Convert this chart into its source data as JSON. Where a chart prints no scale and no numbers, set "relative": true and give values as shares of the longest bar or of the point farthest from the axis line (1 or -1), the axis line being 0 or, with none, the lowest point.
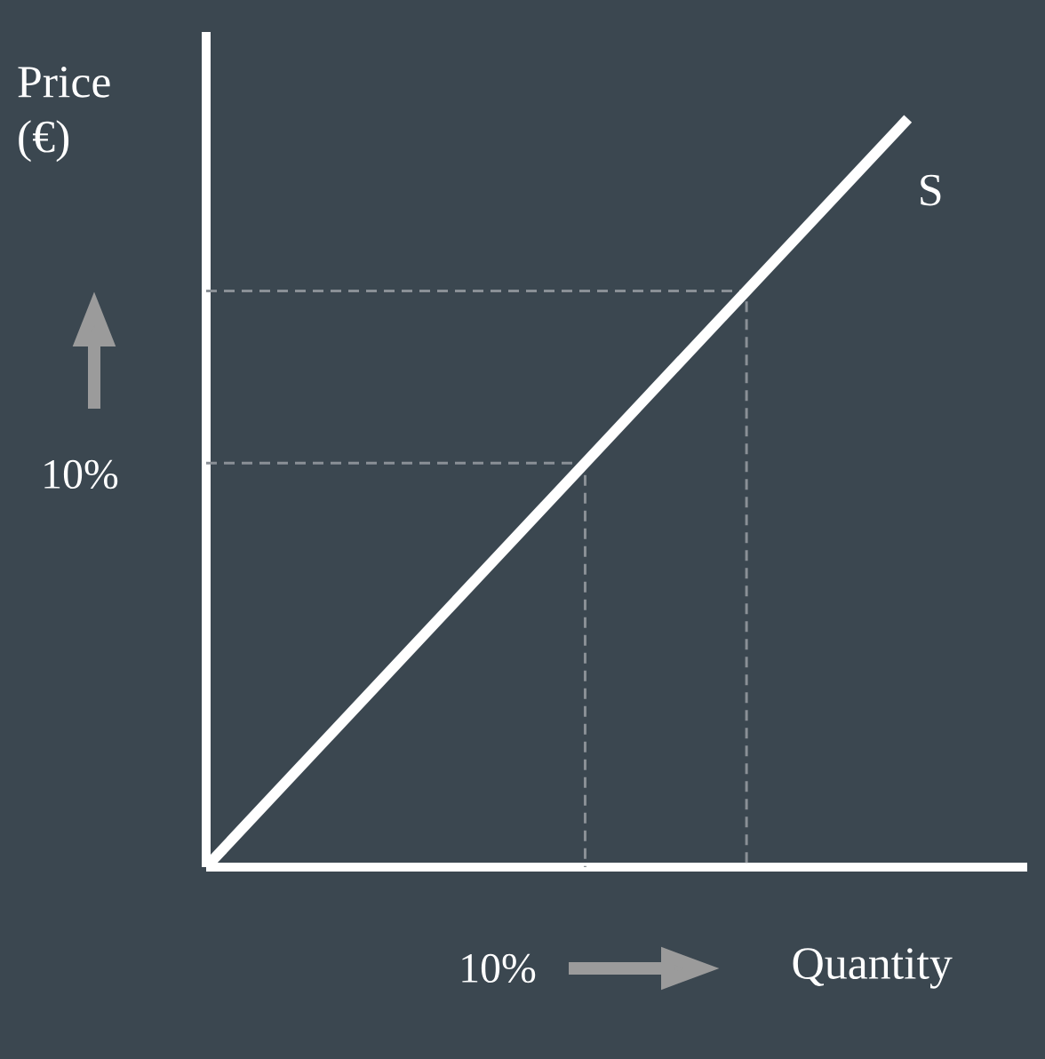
{
  "chart_data": {
    "type": "line",
    "relative": true,
    "xlabel": "Quantity",
    "ylabel": "Price (€)",
    "categories": [
      null,
      null
    ],
    "series": [
      {
        "name": "S",
        "color": "#ffffff",
        "values": [
          0,
          1
        ]
      }
    ],
    "ref_lines": [
      {
        "axis": "y",
        "value": 0,
        "color": "#ffffff",
        "line_style": "solid"
      },
      {
        "axis": "y",
        "value": 0.54,
        "color": "#8a9096",
        "line_style": "dashed"
      },
      {
        "axis": "y",
        "value": 0.77,
        "color": "#8a9096",
        "line_style": "dashed"
      }
    ],
    "annotations": [
      "10%",
      "10%"
    ]
  }
}
